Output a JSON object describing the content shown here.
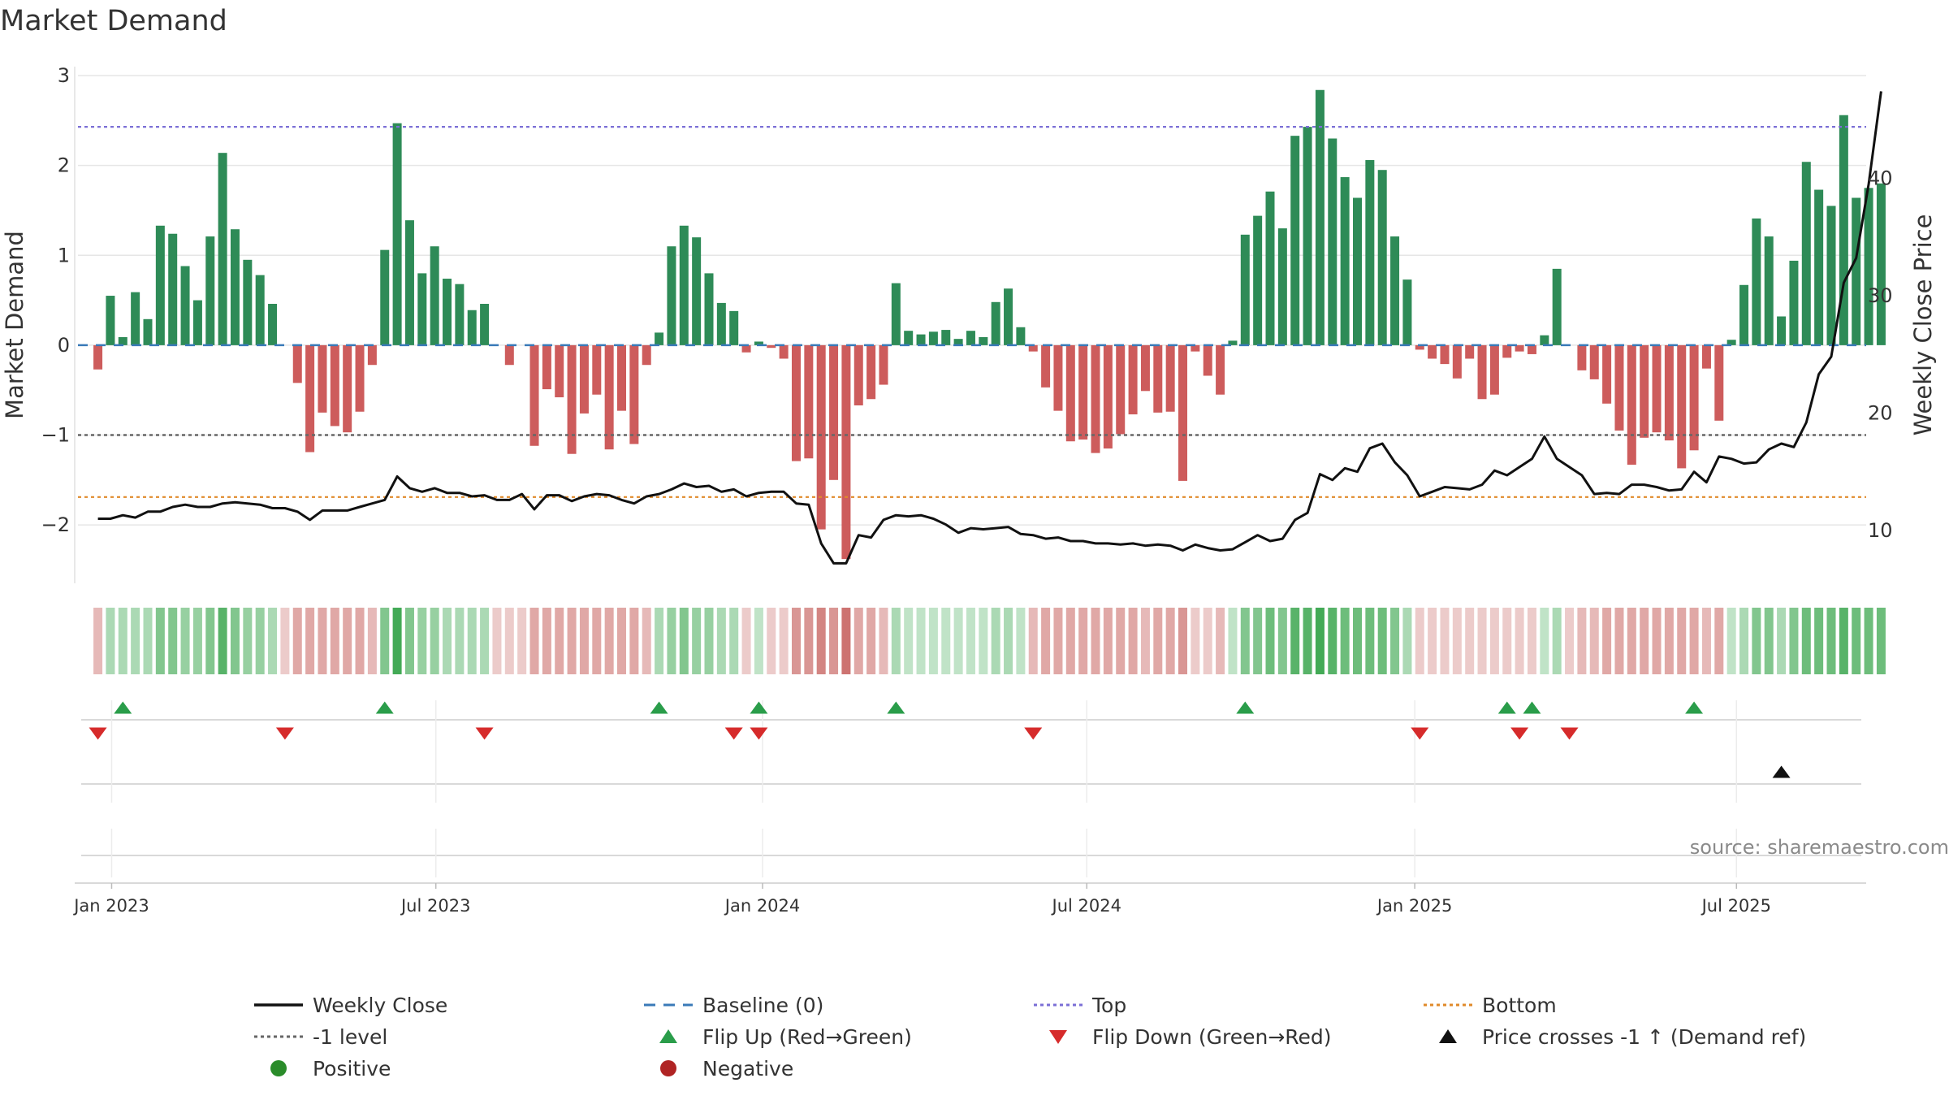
{
  "chart_data": {
    "type": "bar",
    "title": "Market Demand",
    "xlabel": "",
    "ylabel": "Market Demand",
    "y2label": "Weekly Close Price",
    "ylim": [
      -2.65,
      3.1
    ],
    "y2lim": [
      5.5,
      49.5
    ],
    "yticks": [
      -2,
      -1,
      0,
      1,
      2,
      3
    ],
    "yticklabels": [
      "−2",
      "−1",
      "0",
      "1",
      "2",
      "3"
    ],
    "y2ticks": [
      10,
      20,
      30,
      40
    ],
    "y2ticklabels": [
      "10",
      "20",
      "30",
      "40"
    ],
    "x_week_range": [
      -1.6,
      141.8
    ],
    "xticks": [
      {
        "label": "Jan 2023",
        "week": 1.1
      },
      {
        "label": "Jul 2023",
        "week": 27.1
      },
      {
        "label": "Jan 2024",
        "week": 53.3
      },
      {
        "label": "Jul 2024",
        "week": 79.3
      },
      {
        "label": "Jan 2025",
        "week": 105.6
      },
      {
        "label": "Jul 2025",
        "week": 131.4
      }
    ],
    "reference_lines": {
      "top": 2.43,
      "bottom": -1.69,
      "minus_one": -1.0,
      "baseline": 0
    },
    "demand": [
      -0.27,
      0.55,
      0.09,
      0.59,
      0.29,
      1.33,
      1.24,
      0.88,
      0.5,
      1.21,
      2.14,
      1.29,
      0.95,
      0.78,
      0.46,
      0,
      -0.42,
      -1.19,
      -0.75,
      -0.9,
      -0.97,
      -0.74,
      -0.22,
      1.06,
      2.47,
      1.39,
      0.8,
      1.1,
      0.74,
      0.68,
      0.39,
      0.46,
      0,
      -0.22,
      0,
      -1.12,
      -0.49,
      -0.58,
      -1.21,
      -0.76,
      -0.55,
      -1.16,
      -0.73,
      -1.1,
      -0.22,
      0.14,
      1.1,
      1.33,
      1.2,
      0.8,
      0.47,
      0.38,
      -0.08,
      0.04,
      -0.03,
      -0.15,
      -1.29,
      -1.26,
      -2.05,
      -1.5,
      -2.38,
      -0.67,
      -0.6,
      -0.44,
      0.69,
      0.16,
      0.12,
      0.15,
      0.17,
      0.07,
      0.16,
      0.09,
      0.48,
      0.63,
      0.2,
      -0.07,
      -0.47,
      -0.73,
      -1.07,
      -1.05,
      -1.2,
      -1.15,
      -0.99,
      -0.77,
      -0.51,
      -0.75,
      -0.74,
      -1.51,
      -0.07,
      -0.34,
      -0.55,
      0.05,
      1.23,
      1.44,
      1.71,
      1.3,
      2.33,
      2.43,
      2.84,
      2.3,
      1.87,
      1.64,
      2.06,
      1.95,
      1.21,
      0.73,
      -0.05,
      -0.15,
      -0.21,
      -0.37,
      -0.15,
      -0.6,
      -0.55,
      -0.14,
      -0.07,
      -0.1,
      0.11,
      0.85,
      0,
      -0.28,
      -0.38,
      -0.65,
      -0.95,
      -1.33,
      -1.03,
      -0.97,
      -1.06,
      -1.37,
      -1.17,
      -0.26,
      -0.84,
      0.06,
      0.67,
      1.41,
      1.21,
      0.32,
      0.94,
      2.04,
      1.73,
      1.55,
      2.56,
      1.64,
      1.75,
      1.8
    ],
    "close": [
      11.0,
      11.0,
      11.3,
      11.1,
      11.6,
      11.6,
      12.0,
      12.2,
      12.0,
      12.0,
      12.3,
      12.4,
      12.3,
      12.2,
      11.9,
      11.9,
      11.6,
      10.9,
      11.7,
      11.7,
      11.7,
      12.0,
      12.3,
      12.6,
      14.6,
      13.6,
      13.3,
      13.6,
      13.2,
      13.2,
      12.9,
      13.0,
      12.6,
      12.6,
      13.1,
      11.8,
      13.0,
      13.0,
      12.5,
      12.9,
      13.1,
      13.0,
      12.6,
      12.3,
      12.9,
      13.1,
      13.5,
      14.0,
      13.7,
      13.8,
      13.3,
      13.5,
      12.9,
      13.2,
      13.3,
      13.3,
      12.3,
      12.2,
      8.9,
      7.2,
      7.2,
      9.6,
      9.4,
      10.9,
      11.3,
      11.2,
      11.3,
      11.0,
      10.5,
      9.8,
      10.2,
      10.1,
      10.2,
      10.3,
      9.7,
      9.6,
      9.3,
      9.4,
      9.1,
      9.1,
      8.9,
      8.9,
      8.8,
      8.9,
      8.7,
      8.8,
      8.7,
      8.3,
      8.8,
      8.5,
      8.3,
      8.4,
      9.0,
      9.6,
      9.1,
      9.3,
      10.9,
      11.5,
      14.8,
      14.3,
      15.3,
      15.0,
      17.0,
      17.4,
      15.8,
      14.7,
      12.9,
      13.3,
      13.7,
      13.6,
      13.5,
      13.9,
      15.1,
      14.7,
      15.4,
      16.1,
      18.0,
      16.1,
      15.4,
      14.7,
      13.1,
      13.2,
      13.1,
      13.9,
      13.9,
      13.7,
      13.4,
      13.5,
      15.0,
      14.1,
      16.3,
      16.1,
      15.7,
      15.8,
      16.9,
      17.4,
      17.1,
      19.2,
      23.3,
      24.8,
      31.1,
      33.2,
      39.5,
      47.4
    ],
    "strip": [
      -0.4,
      0.4,
      0.4,
      0.4,
      0.4,
      0.6,
      0.6,
      0.5,
      0.5,
      0.6,
      0.8,
      0.6,
      0.5,
      0.5,
      0.4,
      -0.3,
      -0.5,
      -0.5,
      -0.5,
      -0.5,
      -0.5,
      -0.5,
      -0.4,
      0.6,
      0.9,
      0.6,
      0.5,
      0.5,
      0.4,
      0.4,
      0.4,
      0.4,
      -0.3,
      -0.3,
      -0.3,
      -0.5,
      -0.5,
      -0.5,
      -0.5,
      -0.5,
      -0.5,
      -0.5,
      -0.5,
      -0.5,
      -0.4,
      0.4,
      0.5,
      0.6,
      0.5,
      0.5,
      0.4,
      0.4,
      -0.3,
      0.3,
      -0.3,
      -0.3,
      -0.6,
      -0.6,
      -0.7,
      -0.6,
      -0.8,
      -0.5,
      -0.5,
      -0.4,
      0.4,
      0.3,
      0.3,
      0.3,
      0.3,
      0.3,
      0.3,
      0.3,
      0.4,
      0.4,
      0.3,
      -0.4,
      -0.5,
      -0.5,
      -0.5,
      -0.5,
      -0.5,
      -0.5,
      -0.5,
      -0.5,
      -0.4,
      -0.5,
      -0.5,
      -0.6,
      -0.3,
      -0.3,
      -0.4,
      0.3,
      0.6,
      0.6,
      0.7,
      0.6,
      0.8,
      0.8,
      0.9,
      0.8,
      0.7,
      0.7,
      0.7,
      0.7,
      0.6,
      0.4,
      -0.3,
      -0.3,
      -0.3,
      -0.3,
      -0.3,
      -0.3,
      -0.3,
      -0.3,
      -0.3,
      -0.3,
      0.3,
      0.4,
      -0.3,
      -0.4,
      -0.4,
      -0.5,
      -0.5,
      -0.5,
      -0.5,
      -0.5,
      -0.5,
      -0.5,
      -0.5,
      -0.4,
      -0.5,
      0.3,
      0.4,
      0.6,
      0.6,
      0.4,
      0.6,
      0.7,
      0.7,
      0.7,
      0.8,
      0.7,
      0.7,
      0.7
    ],
    "flip_up_weeks": [
      2,
      23,
      45,
      53,
      64,
      92,
      113,
      115,
      128
    ],
    "flip_down_weeks": [
      0,
      15,
      31,
      51,
      53,
      75,
      106,
      114,
      118
    ],
    "price_cross_weeks": [
      135
    ],
    "legend": [
      {
        "label": "Weekly Close",
        "symbol": "solid-line",
        "color": "#111111"
      },
      {
        "label": "Baseline (0)",
        "symbol": "dash-line",
        "color": "#3a7ab8"
      },
      {
        "label": "Top",
        "symbol": "dot-line",
        "color": "#7b6fd6"
      },
      {
        "label": "Bottom",
        "symbol": "dot-line",
        "color": "#e08a2a"
      },
      {
        "label": "-1 level",
        "symbol": "dot-line",
        "color": "#666666"
      },
      {
        "label": "Flip Up (Red→Green)",
        "symbol": "up-triangle",
        "color": "#2a9d4a"
      },
      {
        "label": "Flip Down (Green→Red)",
        "symbol": "down-triangle",
        "color": "#d62b2b"
      },
      {
        "label": "Price crosses -1 ↑ (Demand ref)",
        "symbol": "up-triangle",
        "color": "#111111"
      },
      {
        "label": "Positive",
        "symbol": "dot",
        "color": "#2a8c2a"
      },
      {
        "label": "Negative",
        "symbol": "dot",
        "color": "#b02424"
      }
    ],
    "source": "source: sharemaestro.com",
    "colors": {
      "positive_bar": "#2e8b57",
      "negative_bar": "#cd5c5c",
      "strip_green": "#2ea043",
      "strip_red": "#c0504d",
      "grid": "#e6e6e6"
    }
  }
}
